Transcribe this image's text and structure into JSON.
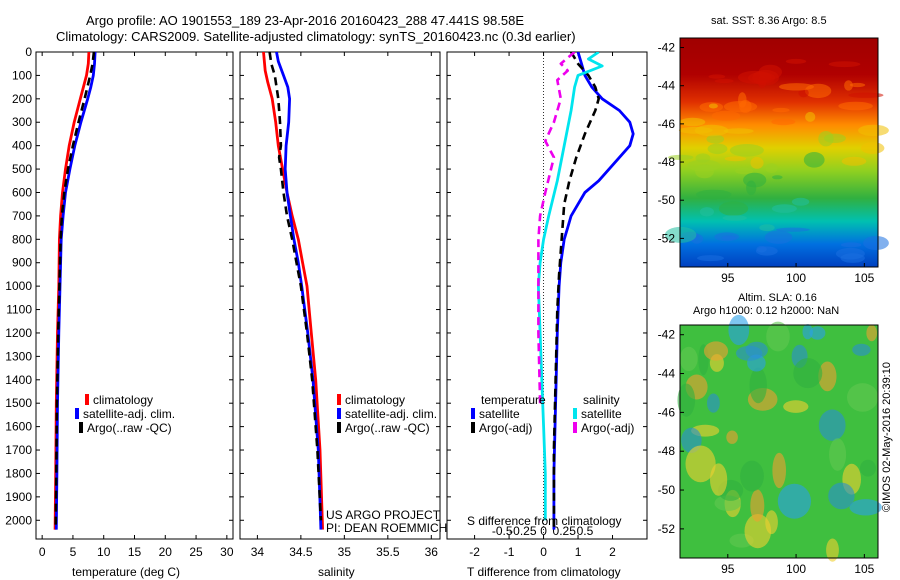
{
  "header": {
    "title_line1": "Argo profile: AO 1901553_189 23-Apr-2016 20160423_288 47.441S 98.58E",
    "title_line2": "Climatology: CARS2009. Satellite-adjusted climatology: synTS_20160423.nc (0.3d earlier)"
  },
  "credits": {
    "project": "US ARGO PROJECT",
    "pi": "PI: DEAN ROEMMICH",
    "imos": "©IMOS 02-May-2016 20:39:10"
  },
  "colors": {
    "climatology": "#ff0000",
    "satellite": "#0000ff",
    "argo": "#000000",
    "satellite_salinity": "#00e5ee",
    "argo_salinity": "#ee00ee"
  },
  "chart_data": [
    {
      "id": "temperature",
      "type": "line",
      "xlabel": "temperature (deg C)",
      "ylabel": "",
      "xlim": [
        -1,
        31
      ],
      "ylim": [
        2080,
        0
      ],
      "xticks": [
        0,
        5,
        10,
        15,
        20,
        25,
        30
      ],
      "yticks": [
        0,
        100,
        200,
        300,
        400,
        500,
        600,
        700,
        800,
        900,
        1000,
        1100,
        1200,
        1300,
        1400,
        1500,
        1600,
        1700,
        1800,
        1900,
        2000
      ],
      "legend": [
        "climatology",
        "satellite-adj. clim.",
        "Argo(..raw -QC)"
      ],
      "series": [
        {
          "name": "climatology",
          "style": "solid",
          "color": "#ff0000",
          "points": [
            [
              7.6,
              0
            ],
            [
              7.5,
              50
            ],
            [
              7.2,
              100
            ],
            [
              6.2,
              200
            ],
            [
              5.2,
              300
            ],
            [
              4.4,
              400
            ],
            [
              3.8,
              500
            ],
            [
              3.3,
              600
            ],
            [
              3.0,
              700
            ],
            [
              2.8,
              800
            ],
            [
              2.7,
              1000
            ],
            [
              2.5,
              1200
            ],
            [
              2.3,
              1500
            ],
            [
              2.2,
              1800
            ],
            [
              2.1,
              2040
            ]
          ]
        },
        {
          "name": "satellite-adj. clim.",
          "style": "solid",
          "color": "#0000ff",
          "points": [
            [
              8.6,
              0
            ],
            [
              8.5,
              50
            ],
            [
              8.3,
              100
            ],
            [
              7.9,
              150
            ],
            [
              7.4,
              200
            ],
            [
              6.3,
              300
            ],
            [
              5.3,
              400
            ],
            [
              4.5,
              500
            ],
            [
              3.8,
              600
            ],
            [
              3.4,
              700
            ],
            [
              3.1,
              800
            ],
            [
              2.9,
              1000
            ],
            [
              2.7,
              1200
            ],
            [
              2.5,
              1500
            ],
            [
              2.4,
              1800
            ],
            [
              2.3,
              2040
            ]
          ]
        },
        {
          "name": "Argo(..raw -QC)",
          "style": "dashed",
          "color": "#000000",
          "points": [
            [
              8.4,
              0
            ],
            [
              8.2,
              50
            ],
            [
              7.8,
              100
            ],
            [
              6.9,
              200
            ],
            [
              5.9,
              300
            ],
            [
              5.0,
              400
            ],
            [
              4.2,
              500
            ],
            [
              3.6,
              600
            ],
            [
              3.2,
              700
            ],
            [
              3.0,
              800
            ],
            [
              2.8,
              1000
            ],
            [
              2.6,
              1200
            ],
            [
              2.4,
              1500
            ],
            [
              2.3,
              1800
            ],
            [
              2.2,
              2040
            ]
          ]
        }
      ]
    },
    {
      "id": "salinity",
      "type": "line",
      "xlabel": "salinity",
      "ylabel": "",
      "xlim": [
        33.8,
        36.1
      ],
      "ylim": [
        2080,
        0
      ],
      "xticks": [
        34,
        34.5,
        35,
        35.5,
        36
      ],
      "legend": [
        "climatology",
        "satellite-adj. clim.",
        "Argo(..raw -QC)"
      ],
      "series": [
        {
          "name": "climatology",
          "style": "solid",
          "color": "#ff0000",
          "points": [
            [
              34.07,
              0
            ],
            [
              34.09,
              80
            ],
            [
              34.12,
              130
            ],
            [
              34.17,
              200
            ],
            [
              34.21,
              300
            ],
            [
              34.24,
              400
            ],
            [
              34.29,
              500
            ],
            [
              34.34,
              600
            ],
            [
              34.4,
              700
            ],
            [
              34.47,
              800
            ],
            [
              34.52,
              900
            ],
            [
              34.57,
              1000
            ],
            [
              34.62,
              1200
            ],
            [
              34.67,
              1400
            ],
            [
              34.72,
              1700
            ],
            [
              34.75,
              2040
            ]
          ]
        },
        {
          "name": "satellite-adj. clim.",
          "style": "solid",
          "color": "#0000ff",
          "points": [
            [
              34.22,
              0
            ],
            [
              34.24,
              40
            ],
            [
              34.3,
              100
            ],
            [
              34.35,
              150
            ],
            [
              34.37,
              200
            ],
            [
              34.36,
              300
            ],
            [
              34.33,
              400
            ],
            [
              34.32,
              500
            ],
            [
              34.34,
              600
            ],
            [
              34.38,
              700
            ],
            [
              34.42,
              800
            ],
            [
              34.47,
              900
            ],
            [
              34.51,
              1000
            ],
            [
              34.58,
              1200
            ],
            [
              34.64,
              1400
            ],
            [
              34.7,
              1700
            ],
            [
              34.73,
              2040
            ]
          ]
        },
        {
          "name": "Argo(..raw -QC)",
          "style": "dashed",
          "color": "#000000",
          "points": [
            [
              34.14,
              0
            ],
            [
              34.16,
              50
            ],
            [
              34.2,
              100
            ],
            [
              34.24,
              200
            ],
            [
              34.26,
              300
            ],
            [
              34.27,
              400
            ],
            [
              34.25,
              450
            ],
            [
              34.27,
              500
            ],
            [
              34.3,
              600
            ],
            [
              34.34,
              700
            ],
            [
              34.4,
              800
            ],
            [
              34.45,
              900
            ],
            [
              34.5,
              1000
            ],
            [
              34.57,
              1200
            ],
            [
              34.63,
              1400
            ],
            [
              34.69,
              1700
            ],
            [
              34.73,
              2000
            ]
          ]
        }
      ]
    },
    {
      "id": "difference",
      "type": "line",
      "xlabel": "T difference from climatology",
      "xlabel2": "S difference from climatology",
      "xlim": [
        -2.8,
        3.0
      ],
      "ylim": [
        2080,
        0
      ],
      "xticks": [
        -2,
        -1,
        0,
        1,
        2
      ],
      "xticks2": [
        -0.5,
        -0.25,
        0,
        0.25,
        0.5
      ],
      "legend_temperature_title": "temperature",
      "legend_salinity_title": "salinity",
      "legend_temperature": [
        "satellite",
        "Argo(-adj)"
      ],
      "legend_salinity": [
        "satellite",
        "Argo(-adj)"
      ],
      "series": [
        {
          "name": "satellite",
          "group": "temperature",
          "style": "solid",
          "color": "#0000ff",
          "points": [
            [
              1.0,
              0
            ],
            [
              1.1,
              50
            ],
            [
              1.2,
              100
            ],
            [
              1.4,
              150
            ],
            [
              1.7,
              200
            ],
            [
              2.2,
              250
            ],
            [
              2.5,
              300
            ],
            [
              2.6,
              350
            ],
            [
              2.5,
              400
            ],
            [
              2.2,
              450
            ],
            [
              1.9,
              500
            ],
            [
              1.6,
              550
            ],
            [
              1.2,
              600
            ],
            [
              1.0,
              650
            ],
            [
              0.8,
              700
            ],
            [
              0.7,
              750
            ],
            [
              0.6,
              800
            ],
            [
              0.55,
              850
            ],
            [
              0.5,
              900
            ],
            [
              0.45,
              1000
            ],
            [
              0.4,
              1200
            ],
            [
              0.35,
              1500
            ],
            [
              0.3,
              1800
            ],
            [
              0.3,
              2040
            ]
          ]
        },
        {
          "name": "Argo(-adj)",
          "group": "temperature",
          "style": "dashed",
          "color": "#000000",
          "points": [
            [
              0.8,
              0
            ],
            [
              1.0,
              50
            ],
            [
              1.3,
              100
            ],
            [
              1.5,
              150
            ],
            [
              1.6,
              200
            ],
            [
              1.5,
              250
            ],
            [
              1.2,
              350
            ],
            [
              0.95,
              450
            ],
            [
              0.75,
              550
            ],
            [
              0.6,
              650
            ],
            [
              0.55,
              750
            ],
            [
              0.5,
              850
            ],
            [
              0.45,
              950
            ],
            [
              0.4,
              1100
            ],
            [
              0.35,
              1400
            ],
            [
              0.3,
              1700
            ],
            [
              0.3,
              2040
            ]
          ]
        },
        {
          "name": "satellite",
          "group": "salinity",
          "style": "solid",
          "color": "#00e5ee",
          "points": [
            [
              1.6,
              0
            ],
            [
              1.3,
              30
            ],
            [
              1.7,
              60
            ],
            [
              1.0,
              100
            ],
            [
              0.9,
              150
            ],
            [
              0.8,
              250
            ],
            [
              0.6,
              400
            ],
            [
              0.4,
              550
            ],
            [
              0.15,
              700
            ],
            [
              0.0,
              800
            ],
            [
              -0.1,
              900
            ],
            [
              -0.15,
              1000
            ],
            [
              -0.1,
              1200
            ],
            [
              -0.05,
              1400
            ],
            [
              0.0,
              1600
            ],
            [
              0.05,
              1800
            ],
            [
              0.05,
              2000
            ]
          ]
        },
        {
          "name": "Argo(-adj)",
          "group": "salinity",
          "style": "dashed",
          "color": "#ee00ee",
          "points": [
            [
              0.9,
              0
            ],
            [
              0.5,
              50
            ],
            [
              0.7,
              80
            ],
            [
              0.4,
              120
            ],
            [
              0.5,
              200
            ],
            [
              0.3,
              300
            ],
            [
              0.05,
              380
            ],
            [
              0.3,
              450
            ],
            [
              0.05,
              600
            ],
            [
              -0.1,
              700
            ],
            [
              -0.15,
              800
            ],
            [
              -0.15,
              1000
            ],
            [
              -0.15,
              1200
            ],
            [
              -0.1,
              1500
            ]
          ]
        }
      ]
    },
    {
      "id": "sst_map",
      "type": "heatmap",
      "title": "sat. SST: 8.36 Argo: 8.5",
      "xlim": [
        91.5,
        106
      ],
      "ylim": [
        -53.5,
        -41.5
      ],
      "xticks": [
        95,
        100,
        105
      ],
      "yticks": [
        -42,
        -44,
        -46,
        -48,
        -50,
        -52
      ]
    },
    {
      "id": "sla_map",
      "type": "heatmap",
      "title": "Altim. SLA: 0.16",
      "subtitle": "Argo h1000: 0.12 h2000: NaN",
      "xlim": [
        91.5,
        106
      ],
      "ylim": [
        -53.5,
        -41.5
      ],
      "xticks": [
        95,
        100,
        105
      ],
      "yticks": [
        -42,
        -44,
        -46,
        -48,
        -50,
        -52
      ]
    }
  ]
}
